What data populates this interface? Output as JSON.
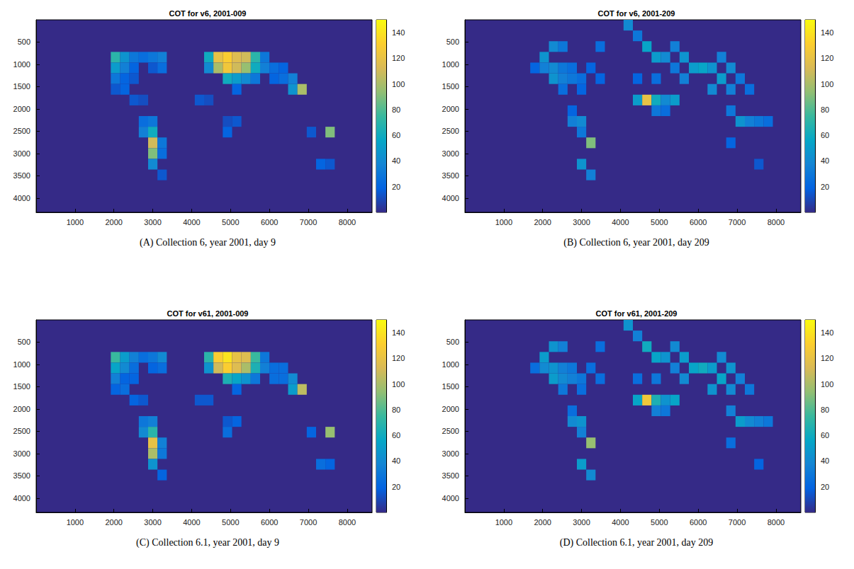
{
  "chart_data": [
    {
      "type": "heatmap",
      "title": "COT for v6, 2001-009",
      "caption": "(A) Collection 6, year 2001, day 9",
      "xlim": [
        0,
        8640
      ],
      "ylim": [
        0,
        4320
      ],
      "xticks": [
        1000,
        2000,
        3000,
        4000,
        5000,
        6000,
        7000,
        8000
      ],
      "yticks": [
        500,
        1000,
        1500,
        2000,
        2500,
        3000,
        3500,
        4000
      ],
      "cell_width": 240,
      "cell_height": 240,
      "cells": [
        [
          2040,
          840,
          70
        ],
        [
          2280,
          840,
          45
        ],
        [
          2520,
          840,
          30
        ],
        [
          2760,
          840,
          25
        ],
        [
          3000,
          840,
          30
        ],
        [
          3240,
          840,
          35
        ],
        [
          2040,
          1080,
          50
        ],
        [
          2280,
          1080,
          35
        ],
        [
          2520,
          1080,
          20
        ],
        [
          3000,
          1080,
          15
        ],
        [
          3240,
          1080,
          25
        ],
        [
          2040,
          1320,
          30
        ],
        [
          2280,
          1320,
          20
        ],
        [
          2520,
          1320,
          15
        ],
        [
          2040,
          1560,
          15
        ],
        [
          2280,
          1560,
          20
        ],
        [
          2520,
          1800,
          15
        ],
        [
          2760,
          1800,
          12
        ],
        [
          4440,
          840,
          60
        ],
        [
          4680,
          840,
          120
        ],
        [
          4920,
          840,
          130
        ],
        [
          5160,
          840,
          115
        ],
        [
          5400,
          840,
          110
        ],
        [
          5640,
          840,
          70
        ],
        [
          5880,
          840,
          30
        ],
        [
          4440,
          1080,
          40
        ],
        [
          4680,
          1080,
          100
        ],
        [
          4920,
          1080,
          125
        ],
        [
          5160,
          1080,
          110
        ],
        [
          5400,
          1080,
          95
        ],
        [
          5640,
          1080,
          60
        ],
        [
          5880,
          1080,
          35
        ],
        [
          6120,
          1080,
          25
        ],
        [
          6360,
          1080,
          20
        ],
        [
          4920,
          1320,
          60
        ],
        [
          5160,
          1320,
          50
        ],
        [
          5400,
          1320,
          40
        ],
        [
          5640,
          1320,
          30
        ],
        [
          6120,
          1320,
          20
        ],
        [
          6360,
          1320,
          25
        ],
        [
          6600,
          1320,
          35
        ],
        [
          5160,
          1560,
          20
        ],
        [
          6600,
          1560,
          45
        ],
        [
          6840,
          1560,
          100
        ],
        [
          4200,
          1800,
          15
        ],
        [
          4440,
          1800,
          12
        ],
        [
          2760,
          2280,
          25
        ],
        [
          3000,
          2280,
          30
        ],
        [
          2760,
          2520,
          35
        ],
        [
          3000,
          2520,
          60
        ],
        [
          3000,
          2760,
          110
        ],
        [
          3240,
          2760,
          30
        ],
        [
          3000,
          3000,
          90
        ],
        [
          3240,
          3000,
          25
        ],
        [
          3000,
          3240,
          40
        ],
        [
          3240,
          3480,
          15
        ],
        [
          4920,
          2280,
          12
        ],
        [
          5160,
          2280,
          15
        ],
        [
          4920,
          2520,
          20
        ],
        [
          7080,
          2520,
          15
        ],
        [
          7560,
          2520,
          90
        ],
        [
          7320,
          3240,
          20
        ],
        [
          7560,
          3240,
          15
        ]
      ],
      "colorbar": {
        "range": [
          0,
          150
        ],
        "ticks": [
          20,
          40,
          60,
          80,
          100,
          120,
          140
        ]
      }
    },
    {
      "type": "heatmap",
      "title": "COT for v6, 2001-209",
      "caption": "(B) Collection 6, year 2001, day 209",
      "xlim": [
        0,
        8640
      ],
      "ylim": [
        0,
        4320
      ],
      "xticks": [
        1000,
        2000,
        3000,
        4000,
        5000,
        6000,
        7000,
        8000
      ],
      "yticks": [
        500,
        1000,
        1500,
        2000,
        2500,
        3000,
        3500,
        4000
      ],
      "cell_width": 240,
      "cell_height": 240,
      "cells": [
        [
          1800,
          1080,
          20
        ],
        [
          2040,
          840,
          45
        ],
        [
          2280,
          600,
          40
        ],
        [
          2520,
          600,
          30
        ],
        [
          3480,
          600,
          25
        ],
        [
          2040,
          1080,
          35
        ],
        [
          2280,
          1080,
          40
        ],
        [
          2520,
          1080,
          30
        ],
        [
          2760,
          1080,
          25
        ],
        [
          3240,
          1080,
          20
        ],
        [
          2280,
          1320,
          45
        ],
        [
          2520,
          1320,
          35
        ],
        [
          2760,
          1320,
          30
        ],
        [
          3000,
          1320,
          25
        ],
        [
          3480,
          1320,
          20
        ],
        [
          2520,
          1560,
          25
        ],
        [
          3000,
          1560,
          20
        ],
        [
          4200,
          120,
          40
        ],
        [
          4440,
          360,
          30
        ],
        [
          4680,
          600,
          55
        ],
        [
          5400,
          600,
          35
        ],
        [
          4920,
          840,
          50
        ],
        [
          5160,
          840,
          40
        ],
        [
          5640,
          840,
          45
        ],
        [
          6600,
          840,
          35
        ],
        [
          5400,
          1080,
          30
        ],
        [
          5880,
          1080,
          50
        ],
        [
          6120,
          1080,
          55
        ],
        [
          6360,
          1080,
          45
        ],
        [
          6840,
          1080,
          40
        ],
        [
          4440,
          1320,
          20
        ],
        [
          4920,
          1320,
          25
        ],
        [
          5640,
          1320,
          35
        ],
        [
          6600,
          1320,
          50
        ],
        [
          7080,
          1320,
          30
        ],
        [
          6360,
          1560,
          40
        ],
        [
          6840,
          1560,
          35
        ],
        [
          7320,
          1560,
          25
        ],
        [
          4440,
          1800,
          50
        ],
        [
          4680,
          1800,
          120
        ],
        [
          4920,
          1800,
          60
        ],
        [
          5160,
          1800,
          40
        ],
        [
          5400,
          1800,
          50
        ],
        [
          4920,
          2040,
          30
        ],
        [
          5160,
          2040,
          25
        ],
        [
          2760,
          2040,
          20
        ],
        [
          2760,
          2280,
          35
        ],
        [
          3000,
          2280,
          40
        ],
        [
          3000,
          2520,
          30
        ],
        [
          3240,
          2760,
          90
        ],
        [
          3000,
          3240,
          45
        ],
        [
          3240,
          3480,
          35
        ],
        [
          6840,
          2040,
          30
        ],
        [
          7080,
          2280,
          45
        ],
        [
          7320,
          2280,
          35
        ],
        [
          7560,
          2280,
          30
        ],
        [
          7800,
          2280,
          25
        ],
        [
          6840,
          2760,
          20
        ],
        [
          7560,
          3240,
          15
        ]
      ],
      "colorbar": {
        "range": [
          0,
          150
        ],
        "ticks": [
          20,
          40,
          60,
          80,
          100,
          120,
          140
        ]
      }
    },
    {
      "type": "heatmap",
      "title": "COT for v61, 2001-009",
      "caption": "(C) Collection 6.1, year 2001, day 9",
      "xlim": [
        0,
        8640
      ],
      "ylim": [
        0,
        4320
      ],
      "xticks": [
        1000,
        2000,
        3000,
        4000,
        5000,
        6000,
        7000,
        8000
      ],
      "yticks": [
        500,
        1000,
        1500,
        2000,
        2500,
        3000,
        3500,
        4000
      ],
      "cell_width": 240,
      "cell_height": 240,
      "cells": [
        [
          2040,
          840,
          75
        ],
        [
          2280,
          840,
          50
        ],
        [
          2520,
          840,
          35
        ],
        [
          2760,
          840,
          25
        ],
        [
          3000,
          840,
          30
        ],
        [
          3240,
          840,
          40
        ],
        [
          2040,
          1080,
          55
        ],
        [
          2280,
          1080,
          40
        ],
        [
          2520,
          1080,
          25
        ],
        [
          3000,
          1080,
          20
        ],
        [
          3240,
          1080,
          25
        ],
        [
          2040,
          1320,
          35
        ],
        [
          2280,
          1320,
          20
        ],
        [
          2520,
          1320,
          20
        ],
        [
          2040,
          1560,
          20
        ],
        [
          2280,
          1560,
          25
        ],
        [
          2520,
          1800,
          20
        ],
        [
          2760,
          1800,
          15
        ],
        [
          4440,
          840,
          70
        ],
        [
          4680,
          840,
          130
        ],
        [
          4920,
          840,
          140
        ],
        [
          5160,
          840,
          120
        ],
        [
          5400,
          840,
          115
        ],
        [
          5640,
          840,
          75
        ],
        [
          5880,
          840,
          30
        ],
        [
          4440,
          1080,
          45
        ],
        [
          4680,
          1080,
          110
        ],
        [
          4920,
          1080,
          130
        ],
        [
          5160,
          1080,
          115
        ],
        [
          5400,
          1080,
          100
        ],
        [
          5640,
          1080,
          65
        ],
        [
          5880,
          1080,
          35
        ],
        [
          6120,
          1080,
          25
        ],
        [
          6360,
          1080,
          25
        ],
        [
          4920,
          1320,
          65
        ],
        [
          5160,
          1320,
          55
        ],
        [
          5400,
          1320,
          45
        ],
        [
          5640,
          1320,
          30
        ],
        [
          6120,
          1320,
          25
        ],
        [
          6360,
          1320,
          25
        ],
        [
          6600,
          1320,
          40
        ],
        [
          5160,
          1560,
          20
        ],
        [
          6600,
          1560,
          50
        ],
        [
          6840,
          1560,
          105
        ],
        [
          4200,
          1800,
          15
        ],
        [
          4440,
          1800,
          15
        ],
        [
          2760,
          2280,
          30
        ],
        [
          3000,
          2280,
          35
        ],
        [
          2760,
          2520,
          40
        ],
        [
          3000,
          2520,
          70
        ],
        [
          3000,
          2760,
          120
        ],
        [
          3240,
          2760,
          35
        ],
        [
          3000,
          3000,
          100
        ],
        [
          3240,
          3000,
          30
        ],
        [
          3000,
          3240,
          45
        ],
        [
          3240,
          3480,
          20
        ],
        [
          4920,
          2280,
          15
        ],
        [
          5160,
          2280,
          20
        ],
        [
          4920,
          2520,
          25
        ],
        [
          7080,
          2520,
          20
        ],
        [
          7560,
          2520,
          95
        ],
        [
          7320,
          3240,
          25
        ],
        [
          7560,
          3240,
          20
        ]
      ],
      "colorbar": {
        "range": [
          0,
          150
        ],
        "ticks": [
          20,
          40,
          60,
          80,
          100,
          120,
          140
        ]
      }
    },
    {
      "type": "heatmap",
      "title": "COT for v61, 2001-209",
      "caption": "(D) Collection 6.1, year 2001, day 209",
      "xlim": [
        0,
        8640
      ],
      "ylim": [
        0,
        4320
      ],
      "xticks": [
        1000,
        2000,
        3000,
        4000,
        5000,
        6000,
        7000,
        8000
      ],
      "yticks": [
        500,
        1000,
        1500,
        2000,
        2500,
        3000,
        3500,
        4000
      ],
      "cell_width": 240,
      "cell_height": 240,
      "cells": [
        [
          1800,
          1080,
          25
        ],
        [
          2040,
          840,
          50
        ],
        [
          2280,
          600,
          45
        ],
        [
          2520,
          600,
          35
        ],
        [
          3480,
          600,
          25
        ],
        [
          2040,
          1080,
          40
        ],
        [
          2280,
          1080,
          45
        ],
        [
          2520,
          1080,
          35
        ],
        [
          2760,
          1080,
          30
        ],
        [
          3240,
          1080,
          25
        ],
        [
          2280,
          1320,
          50
        ],
        [
          2520,
          1320,
          40
        ],
        [
          2760,
          1320,
          35
        ],
        [
          3000,
          1320,
          30
        ],
        [
          3480,
          1320,
          25
        ],
        [
          2520,
          1560,
          30
        ],
        [
          3000,
          1560,
          25
        ],
        [
          4200,
          120,
          45
        ],
        [
          4440,
          360,
          35
        ],
        [
          4680,
          600,
          60
        ],
        [
          5400,
          600,
          40
        ],
        [
          4920,
          840,
          55
        ],
        [
          5160,
          840,
          45
        ],
        [
          5640,
          840,
          50
        ],
        [
          6600,
          840,
          40
        ],
        [
          5400,
          1080,
          35
        ],
        [
          5880,
          1080,
          55
        ],
        [
          6120,
          1080,
          60
        ],
        [
          6360,
          1080,
          50
        ],
        [
          6840,
          1080,
          45
        ],
        [
          4440,
          1320,
          25
        ],
        [
          4920,
          1320,
          30
        ],
        [
          5640,
          1320,
          40
        ],
        [
          6600,
          1320,
          55
        ],
        [
          7080,
          1320,
          35
        ],
        [
          6360,
          1560,
          45
        ],
        [
          6840,
          1560,
          40
        ],
        [
          7320,
          1560,
          30
        ],
        [
          4440,
          1800,
          55
        ],
        [
          4680,
          1800,
          125
        ],
        [
          4920,
          1800,
          65
        ],
        [
          5160,
          1800,
          45
        ],
        [
          5400,
          1800,
          55
        ],
        [
          4920,
          2040,
          35
        ],
        [
          5160,
          2040,
          30
        ],
        [
          2760,
          2040,
          25
        ],
        [
          2760,
          2280,
          40
        ],
        [
          3000,
          2280,
          45
        ],
        [
          3000,
          2520,
          35
        ],
        [
          3240,
          2760,
          95
        ],
        [
          3000,
          3240,
          50
        ],
        [
          3240,
          3480,
          40
        ],
        [
          6840,
          2040,
          35
        ],
        [
          7080,
          2280,
          50
        ],
        [
          7320,
          2280,
          40
        ],
        [
          7560,
          2280,
          35
        ],
        [
          7800,
          2280,
          30
        ],
        [
          6840,
          2760,
          25
        ],
        [
          7560,
          3240,
          20
        ]
      ],
      "colorbar": {
        "range": [
          0,
          150
        ],
        "ticks": [
          20,
          40,
          60,
          80,
          100,
          120,
          140
        ]
      }
    }
  ]
}
